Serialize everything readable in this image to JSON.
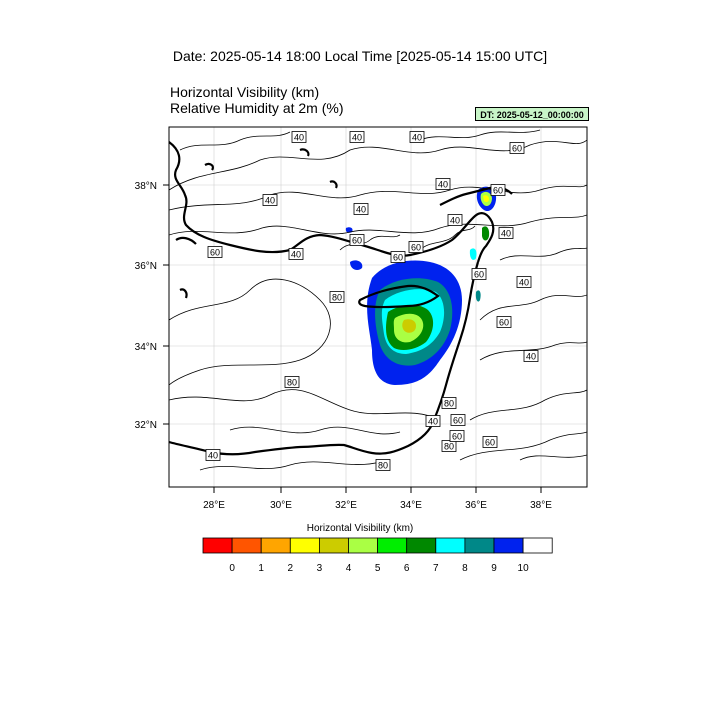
{
  "header": {
    "date_line": "Date: 2025-05-14  18:00 Local Time [2025-05-14  15:00 UTC]",
    "variable_1": "Horizontal Visibility   (km)",
    "variable_2": "Relative Humidity at 2m   (%)",
    "dt_badge": "DT: 2025-05-12_00:00:00"
  },
  "axes": {
    "lon_ticks": [
      "28°E",
      "30°E",
      "32°E",
      "34°E",
      "36°E",
      "38°E"
    ],
    "lat_ticks": [
      "38°N",
      "36°N",
      "34°N",
      "32°N"
    ]
  },
  "contour_labels": [
    "40",
    "40",
    "40",
    "60",
    "40",
    "40",
    "40",
    "60",
    "40",
    "60",
    "60",
    "40",
    "60",
    "60",
    "60",
    "40",
    "80",
    "40",
    "60",
    "40",
    "80",
    "80",
    "40",
    "60",
    "80",
    "40",
    "60",
    "60",
    "80"
  ],
  "colorbar": {
    "title": "Horizontal Visibility  (km)",
    "colors": [
      "#ff0000",
      "#ff5500",
      "#ffa500",
      "#ffff00",
      "#cccc00",
      "#aaff44",
      "#00ee00",
      "#008800",
      "#00ffff",
      "#008888",
      "#0022ee",
      "#ffffff"
    ],
    "labels": [
      "0",
      "1",
      "2",
      "3",
      "4",
      "5",
      "6",
      "7",
      "8",
      "9",
      "10"
    ]
  }
}
